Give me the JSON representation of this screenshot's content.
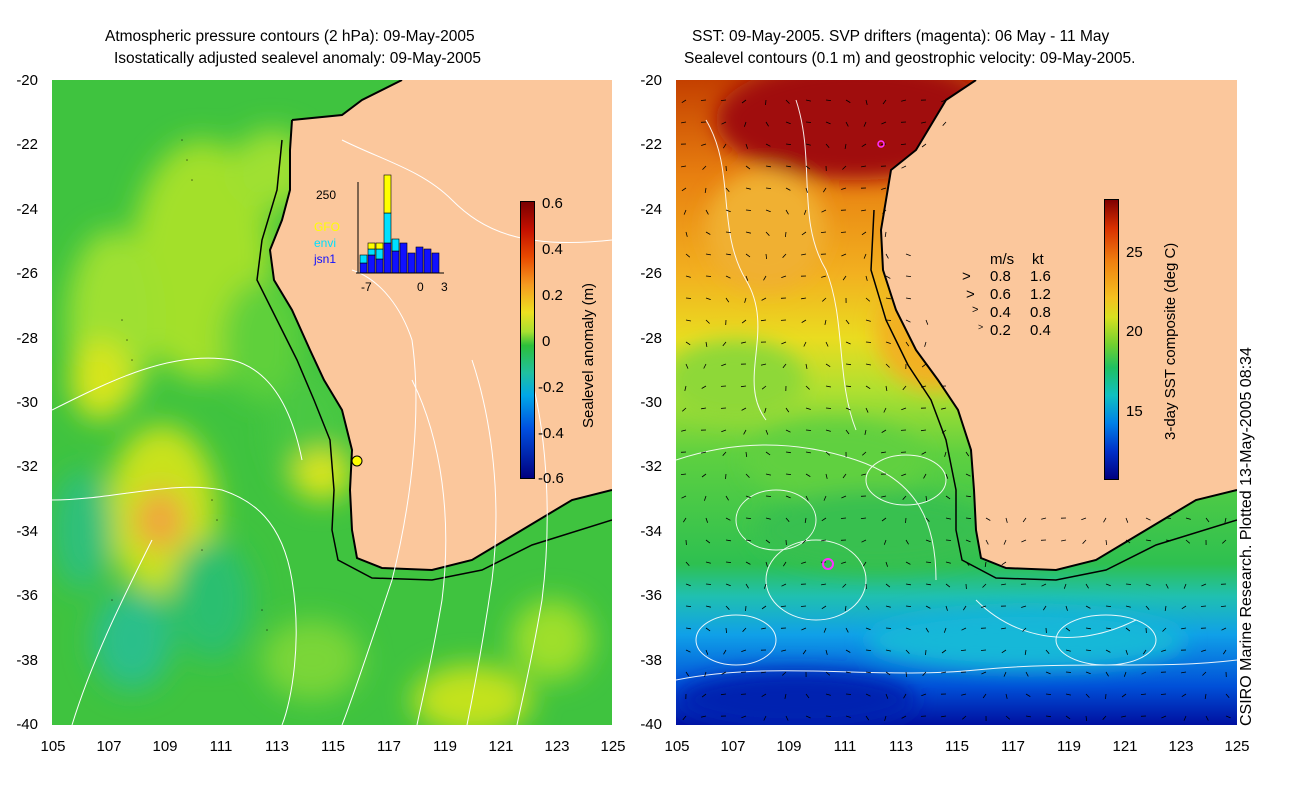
{
  "left_panel": {
    "title_line1": "Atmospheric pressure contours (2 hPa): 09-May-2005",
    "title_line2": "Isostatically adjusted sealevel anomaly: 09-May-2005",
    "colorbar": {
      "label": "Sealevel anomaly (m)",
      "ticks": [
        "0.6",
        "0.4",
        "0.2",
        "0",
        "-0.2",
        "-0.4",
        "-0.6"
      ]
    },
    "inset": {
      "ymax_label": "250",
      "legend": [
        {
          "name": "GFO",
          "color": "#ffff00"
        },
        {
          "name": "envi",
          "color": "#00e0ff"
        },
        {
          "name": "jsn1",
          "color": "#1010ff"
        }
      ],
      "x_ticks": [
        "-7",
        "0",
        "3"
      ]
    }
  },
  "right_panel": {
    "title_line1": "SST: 09-May-2005. SVP drifters (magenta): 06 May - 11 May",
    "title_line2": "Sealevel contours (0.1 m) and geostrophic velocity: 09-May-2005.",
    "colorbar": {
      "label": "3-day SST composite (deg C)",
      "ticks": [
        "25",
        "20",
        "15"
      ]
    },
    "velocity_legend": {
      "header_ms": "m/s",
      "header_kt": "kt",
      "rows": [
        {
          "ms": "0.8",
          "kt": "1.6"
        },
        {
          "ms": "0.6",
          "kt": "1.2"
        },
        {
          "ms": "0.4",
          "kt": "0.8"
        },
        {
          "ms": "0.2",
          "kt": "0.4"
        }
      ]
    }
  },
  "axes": {
    "y_ticks": [
      "-20",
      "-22",
      "-24",
      "-26",
      "-28",
      "-30",
      "-32",
      "-34",
      "-36",
      "-38",
      "-40"
    ],
    "x_ticks": [
      "105",
      "107",
      "109",
      "111",
      "113",
      "115",
      "117",
      "119",
      "121",
      "123",
      "125"
    ]
  },
  "credit": "CSIRO Marine Research. Plotted 13-May-2005 08:34",
  "colors": {
    "land": "#fbc79c",
    "coast": "#000000",
    "contour": "#ffffff"
  }
}
